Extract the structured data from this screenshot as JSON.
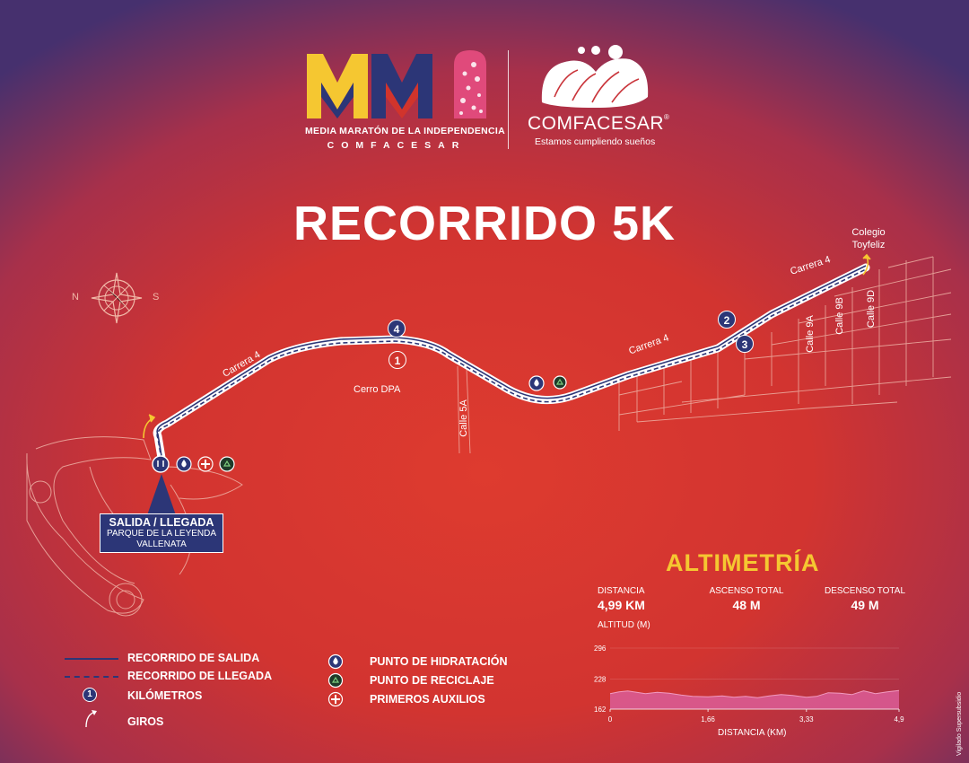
{
  "event": {
    "logo_text": "MMI",
    "name_line1": "MEDIA MARATÓN DE LA INDEPENDENCIA",
    "name_line2": "COMFACESAR",
    "sponsor_name": "COMFACESAR",
    "sponsor_registered": "®",
    "sponsor_slogan": "Estamos cumpliendo sueños"
  },
  "title": "RECORRIDO 5K",
  "compass": {
    "west_label": "N",
    "east_label": "S"
  },
  "map": {
    "streets": [
      {
        "id": "carrera4-west",
        "label": "Carrera 4"
      },
      {
        "id": "carrera4-mid",
        "label": "Carrera 4"
      },
      {
        "id": "carrera4-east",
        "label": "Carrera 4"
      },
      {
        "id": "calle5a",
        "label": "Calle 5A"
      },
      {
        "id": "calle9a",
        "label": "Calle 9A"
      },
      {
        "id": "calle9b",
        "label": "Calle 9B"
      },
      {
        "id": "calle9d",
        "label": "Calle 9D"
      }
    ],
    "places": {
      "cerro": "Cerro DPA",
      "colegio": "Colegio Toyfeliz"
    },
    "km_markers": [
      {
        "label": "1",
        "style": "red"
      },
      {
        "label": "2",
        "style": "blue"
      },
      {
        "label": "3",
        "style": "blue"
      },
      {
        "label": "4",
        "style": "blue"
      }
    ],
    "start": {
      "title": "SALIDA / LLEGADA",
      "place": "PARQUE DE LA LEYENDA VALLENATA"
    }
  },
  "legend": {
    "outbound": "RECORRIDO DE SALIDA",
    "return": "RECORRIDO DE LLEGADA",
    "km": "KILÓMETROS",
    "km_sample": "1",
    "turns": "GIROS",
    "hydration": "PUNTO DE HIDRATACIÓN",
    "recycling": "PUNTO DE RECICLAJE",
    "first_aid": "PRIMEROS AUXILIOS"
  },
  "altimetry": {
    "title": "ALTIMETRÍA",
    "distance_label": "DISTANCIA",
    "distance_value": "4,99 KM",
    "ascent_label": "ASCENSO TOTAL",
    "ascent_value": "48 M",
    "descent_label": "DESCENSO TOTAL",
    "descent_value": "49 M"
  },
  "chart_data": {
    "type": "area",
    "title": "",
    "ylabel": "ALTITUD (M)",
    "xlabel": "DISTANCIA (KM)",
    "ylim": [
      162,
      296
    ],
    "xlim": [
      0,
      4.9
    ],
    "y_ticks": [
      "296",
      "228",
      "162"
    ],
    "x_ticks": [
      "0",
      "1,66",
      "3,33",
      "4,9"
    ],
    "color": "#d95b92",
    "x": [
      0,
      0.15,
      0.3,
      0.45,
      0.6,
      0.8,
      1.0,
      1.2,
      1.4,
      1.66,
      1.9,
      2.1,
      2.3,
      2.5,
      2.7,
      2.9,
      3.1,
      3.33,
      3.5,
      3.7,
      3.9,
      4.1,
      4.3,
      4.5,
      4.7,
      4.9
    ],
    "y": [
      196,
      200,
      202,
      199,
      196,
      199,
      197,
      193,
      190,
      189,
      191,
      188,
      190,
      187,
      191,
      194,
      192,
      188,
      190,
      198,
      197,
      194,
      202,
      196,
      200,
      203
    ]
  },
  "footer": {
    "vertical_text": "Vigilado Supersubsidio"
  },
  "colors": {
    "route_outbound": "#2c3677",
    "route_return": "#2c3677",
    "km_blue": "#2c3677",
    "km_red": "#d1342c",
    "accent_yellow": "#f5c731",
    "logo_yellow": "#f5c731",
    "logo_blue": "#2c3677",
    "logo_red": "#d1342c",
    "logo_pink": "#e04a7b"
  }
}
